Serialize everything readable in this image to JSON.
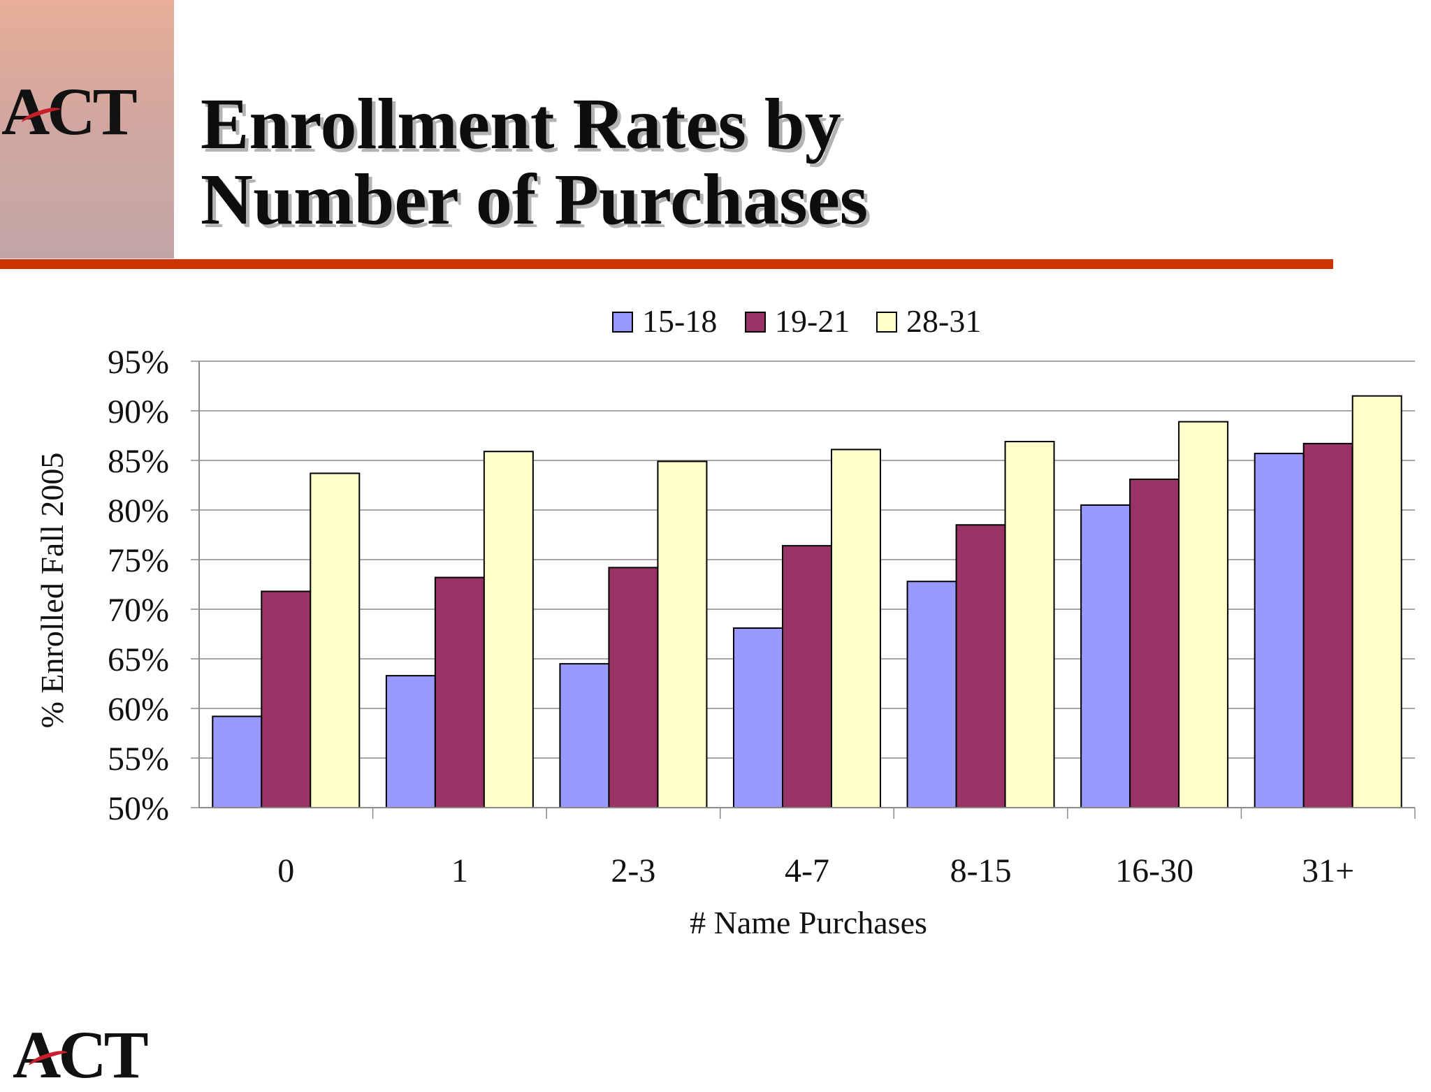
{
  "slide": {
    "title_line1": "Enrollment Rates by",
    "title_line2": "Number of Purchases",
    "logo_text": "ACT",
    "colors": {
      "rule": "#cc3300",
      "corner": "#d4a89c"
    }
  },
  "chart_data": {
    "type": "bar",
    "title": "",
    "xlabel": "# Name Purchases",
    "ylabel": "% Enrolled Fall 2005",
    "categories": [
      "0",
      "1",
      "2-3",
      "4-7",
      "8-15",
      "16-30",
      "31+"
    ],
    "series": [
      {
        "name": "15-18",
        "color": "#9999ff",
        "values": [
          59.2,
          63.3,
          64.5,
          68.1,
          72.8,
          80.5,
          85.7
        ]
      },
      {
        "name": "19-21",
        "color": "#993366",
        "values": [
          71.8,
          73.2,
          74.2,
          76.4,
          78.5,
          83.1,
          86.7
        ]
      },
      {
        "name": "28-31",
        "color": "#ffffcc",
        "values": [
          83.7,
          85.9,
          84.9,
          86.1,
          86.9,
          88.9,
          91.5
        ]
      }
    ],
    "ylim": [
      50,
      95
    ],
    "yticks": [
      50,
      55,
      60,
      65,
      70,
      75,
      80,
      85,
      90,
      95
    ],
    "ytick_labels": [
      "50%",
      "55%",
      "60%",
      "65%",
      "70%",
      "75%",
      "80%",
      "85%",
      "90%",
      "95%"
    ],
    "grid": true,
    "legend_position": "top"
  }
}
